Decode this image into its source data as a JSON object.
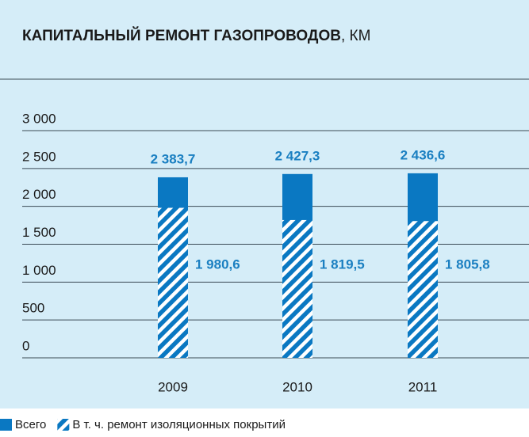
{
  "chart_data": {
    "type": "bar",
    "title": "КАПИТАЛЬНЫЙ РЕМОНТ ГАЗОПРОВОДОВ",
    "title_unit": ", КМ",
    "categories": [
      "2009",
      "2010",
      "2011"
    ],
    "series": [
      {
        "name": "Всего",
        "color": "#0a78c2",
        "values": [
          2383.7,
          2427.3,
          2436.6
        ],
        "value_labels": [
          "2 383,7",
          "2 427,3",
          "2 436,6"
        ]
      },
      {
        "name": "В т. ч. ремонт изоляционных покрытий",
        "color": "#0a78c2",
        "pattern": "hatch",
        "values": [
          1980.6,
          1819.5,
          1805.8
        ],
        "value_labels": [
          "1 980,6",
          "1 819,5",
          "1 805,8"
        ]
      }
    ],
    "ylim": [
      0,
      3000
    ],
    "yticks": [
      0,
      500,
      {
        "value": 1000,
        "label": "1 000"
      },
      {
        "value": 1500,
        "label": "1 500"
      },
      {
        "value": 2000,
        "label": "2 000"
      },
      {
        "value": 2500,
        "label": "2 500"
      },
      {
        "value": 3000,
        "label": "3 000"
      }
    ],
    "grid": true
  }
}
